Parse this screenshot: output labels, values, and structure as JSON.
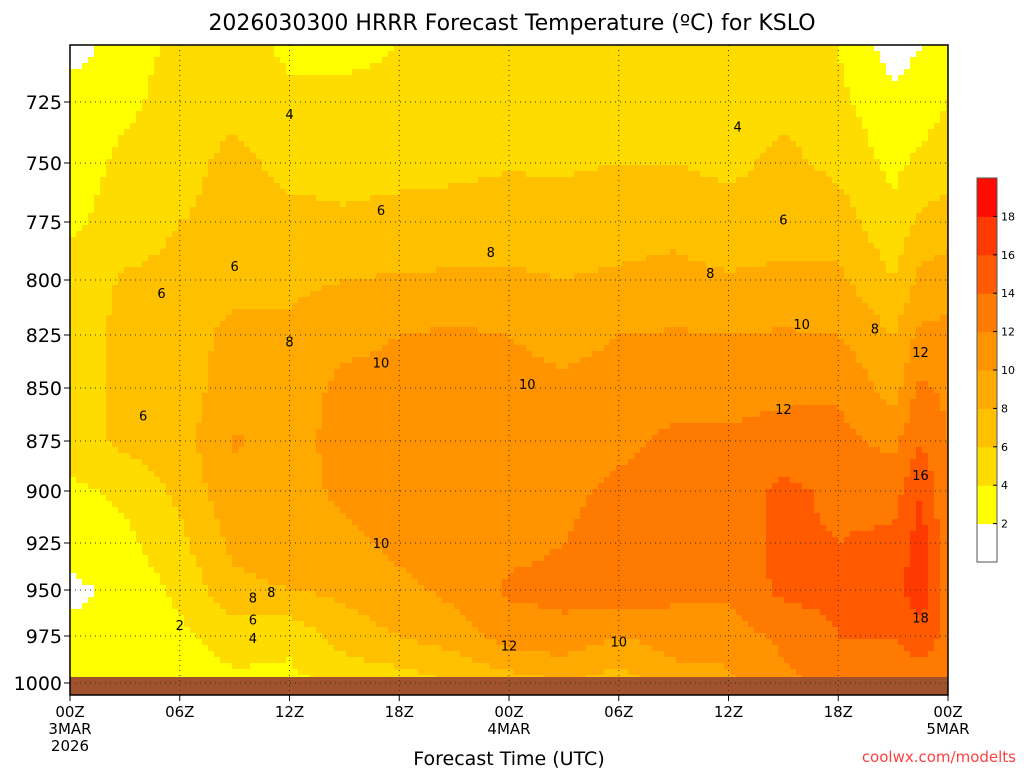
{
  "chart_data": {
    "type": "heatmap",
    "title": "2026030300 HRRR Forecast Temperature (ºC) for KSLO",
    "xlabel": "Forecast Time (UTC)",
    "ylabel": "",
    "credit": "coolwx.com/modelts",
    "xlim": [
      0,
      48
    ],
    "ylim": [
      1000,
      700
    ],
    "x_ticks": [
      {
        "hour": 0,
        "lines": [
          "00Z",
          "3MAR",
          "2026"
        ]
      },
      {
        "hour": 6,
        "lines": [
          "06Z"
        ]
      },
      {
        "hour": 12,
        "lines": [
          "12Z"
        ]
      },
      {
        "hour": 18,
        "lines": [
          "18Z"
        ]
      },
      {
        "hour": 24,
        "lines": [
          "00Z",
          "4MAR"
        ]
      },
      {
        "hour": 30,
        "lines": [
          "06Z"
        ]
      },
      {
        "hour": 36,
        "lines": [
          "12Z"
        ]
      },
      {
        "hour": 42,
        "lines": [
          "18Z"
        ]
      },
      {
        "hour": 48,
        "lines": [
          "00Z",
          "5MAR"
        ]
      }
    ],
    "y_ticks": [
      "725",
      "750",
      "775",
      "800",
      "825",
      "850",
      "875",
      "900",
      "925",
      "950",
      "975",
      "1000"
    ],
    "colorbar": {
      "labels": [
        "2",
        "4",
        "6",
        "8",
        "10",
        "12",
        "14",
        "16",
        "18"
      ],
      "levels": [
        2,
        4,
        6,
        8,
        10,
        12,
        14,
        16,
        18
      ],
      "colors": [
        "#ffffff",
        "#ffff00",
        "#ffdc00",
        "#ffc000",
        "#ffaa00",
        "#ff9400",
        "#ff7a00",
        "#ff5a00",
        "#ff3a00",
        "#ff0c00"
      ]
    },
    "ground_color": "#a0522d",
    "hours": [
      0,
      3,
      6,
      9,
      12,
      15,
      18,
      21,
      24,
      27,
      30,
      33,
      36,
      39,
      42,
      45,
      46.5,
      48
    ],
    "pressures": [
      1000,
      975,
      950,
      925,
      900,
      875,
      850,
      825,
      800,
      775,
      750,
      725,
      700
    ],
    "temperature": [
      [
        3,
        2.5,
        1.5,
        3,
        3.5,
        5,
        5,
        5,
        5,
        3.5,
        3,
        3,
        1
      ],
      [
        3,
        3,
        2.5,
        3.5,
        4.5,
        6.5,
        6.5,
        6.5,
        6.2,
        5,
        4.5,
        3.5,
        3
      ],
      [
        3,
        3.5,
        4.5,
        5.5,
        6.5,
        7,
        7,
        7.2,
        6.5,
        6,
        5.5,
        5,
        4.5
      ],
      [
        3.5,
        5,
        7.5,
        8.5,
        9.5,
        10.2,
        9,
        8.5,
        7.5,
        6.3,
        6.5,
        5.5,
        5
      ],
      [
        3.5,
        4.5,
        8,
        9,
        9,
        9,
        9,
        8.5,
        7.5,
        6.5,
        5.5,
        4.5,
        3.5
      ],
      [
        4.5,
        7,
        8.5,
        9.5,
        10.5,
        11,
        10.5,
        9.5,
        8,
        6.2,
        5.5,
        4.5,
        3.5
      ],
      [
        5,
        8,
        9.5,
        10.5,
        10.5,
        11,
        10.5,
        10,
        8.2,
        6.5,
        5.5,
        4.5,
        4
      ],
      [
        6,
        9,
        10.5,
        11,
        11,
        11,
        10.5,
        10.3,
        8.3,
        6.8,
        5.5,
        5,
        4.5
      ],
      [
        7,
        11,
        12.3,
        11.5,
        11,
        11,
        10.5,
        10,
        8.3,
        7,
        5.8,
        4.5,
        4.5
      ],
      [
        8,
        11.5,
        12.5,
        12,
        11.5,
        10.5,
        10.3,
        9.5,
        8,
        7,
        5.7,
        4.5,
        4.5
      ],
      [
        7,
        10,
        13.5,
        13,
        12.5,
        11.5,
        10.5,
        10,
        8.3,
        7.2,
        6,
        4.8,
        4
      ],
      [
        9,
        11,
        12.5,
        13,
        12.5,
        12.5,
        11,
        10.2,
        8.5,
        7.5,
        6,
        5,
        4.5
      ],
      [
        9.5,
        11,
        12.5,
        13,
        13,
        12.2,
        11.5,
        10,
        8.2,
        6.8,
        5.5,
        4.5,
        4.5
      ],
      [
        11.5,
        12.5,
        14.5,
        14.5,
        14.5,
        12.8,
        11.5,
        10.2,
        8.5,
        7,
        6.5,
        5.5,
        4.5
      ],
      [
        12.5,
        14,
        14.5,
        14,
        13.5,
        12.5,
        11.8,
        10,
        8.5,
        7,
        5.5,
        4.5,
        4
      ],
      [
        13,
        14,
        15,
        14.5,
        13,
        11.5,
        9,
        8,
        6,
        4.5,
        3.5,
        2.5,
        1
      ],
      [
        13,
        15,
        17.5,
        17,
        16,
        14,
        12.5,
        10.5,
        8.5,
        6.5,
        4.5,
        3,
        2
      ],
      [
        13,
        13.5,
        12.5,
        12.5,
        12,
        12,
        11.5,
        10.5,
        9,
        7,
        5,
        4,
        2
      ]
    ],
    "contour_labels": [
      {
        "text": "4",
        "hour": 12,
        "p": 730
      },
      {
        "text": "4",
        "hour": 36.5,
        "p": 735
      },
      {
        "text": "6",
        "hour": 17,
        "p": 770
      },
      {
        "text": "6",
        "hour": 39,
        "p": 774
      },
      {
        "text": "6",
        "hour": 9,
        "p": 794
      },
      {
        "text": "6",
        "hour": 5,
        "p": 806
      },
      {
        "text": "6",
        "hour": 4,
        "p": 863
      },
      {
        "text": "8",
        "hour": 23,
        "p": 788
      },
      {
        "text": "8",
        "hour": 35,
        "p": 797
      },
      {
        "text": "8",
        "hour": 12,
        "p": 828
      },
      {
        "text": "8",
        "hour": 44,
        "p": 822
      },
      {
        "text": "8",
        "hour": 11,
        "p": 951
      },
      {
        "text": "10",
        "hour": 17,
        "p": 838
      },
      {
        "text": "10",
        "hour": 25,
        "p": 848
      },
      {
        "text": "10",
        "hour": 40,
        "p": 820
      },
      {
        "text": "10",
        "hour": 17,
        "p": 925
      },
      {
        "text": "10",
        "hour": 30,
        "p": 978
      },
      {
        "text": "12",
        "hour": 46.5,
        "p": 833
      },
      {
        "text": "12",
        "hour": 39,
        "p": 860
      },
      {
        "text": "12",
        "hour": 24,
        "p": 980
      },
      {
        "text": "16",
        "hour": 46.5,
        "p": 892
      },
      {
        "text": "18",
        "hour": 46.5,
        "p": 965
      },
      {
        "text": "8",
        "hour": 10,
        "p": 954
      },
      {
        "text": "6",
        "hour": 10,
        "p": 966
      },
      {
        "text": "4",
        "hour": 10,
        "p": 976
      },
      {
        "text": "2",
        "hour": 6,
        "p": 969
      }
    ]
  }
}
